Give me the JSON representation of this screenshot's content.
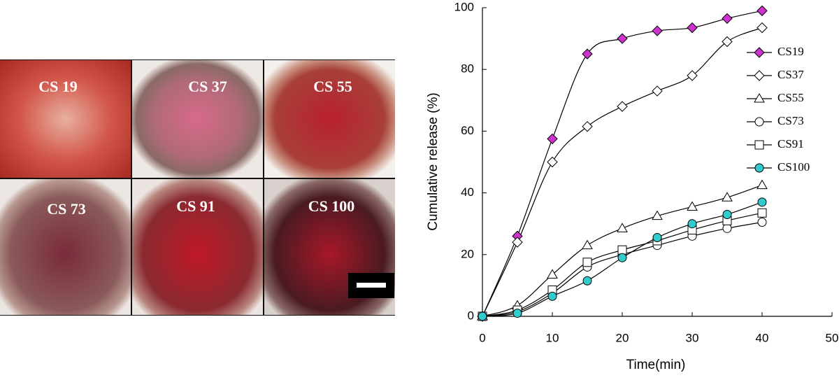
{
  "photo_labels": [
    "CS 19",
    "CS 37",
    "CS 55",
    "CS 73",
    "CS 91",
    "CS 100"
  ],
  "chart_data": {
    "type": "line",
    "x_label": "Time(min)",
    "y_label": "Cumulative release (%)",
    "x": [
      0,
      5,
      10,
      15,
      20,
      25,
      30,
      35,
      40
    ],
    "xlim": [
      0,
      50
    ],
    "xticks": [
      0,
      10,
      20,
      30,
      40,
      50
    ],
    "ylim": [
      0,
      100
    ],
    "yticks": [
      0,
      20,
      40,
      60,
      80,
      100
    ],
    "legend": "right",
    "series": [
      {
        "name": "CS19",
        "marker": "diamond",
        "color": "#cc33cc",
        "values": [
          0,
          26,
          57.5,
          85,
          90,
          92.5,
          93.5,
          96.5,
          99
        ]
      },
      {
        "name": "CS37",
        "marker": "diamond",
        "color": "#ffffff",
        "values": [
          0,
          24,
          50,
          61.5,
          68,
          73,
          78,
          89,
          93.5
        ]
      },
      {
        "name": "CS55",
        "marker": "triangle",
        "color": "#ffffff",
        "values": [
          0,
          3.5,
          13.5,
          23,
          28.5,
          32.5,
          35.5,
          38.5,
          42.5
        ]
      },
      {
        "name": "CS73",
        "marker": "circle",
        "color": "#ffffff",
        "values": [
          0,
          1.5,
          7.5,
          16,
          20,
          23,
          26,
          28.5,
          30.5
        ]
      },
      {
        "name": "CS91",
        "marker": "square",
        "color": "#ffffff",
        "values": [
          0,
          2,
          8.5,
          17.5,
          21.5,
          24.5,
          28,
          31,
          33.5
        ]
      },
      {
        "name": "CS100",
        "marker": "circle",
        "color": "#33cccc",
        "values": [
          0,
          1,
          6.5,
          11.5,
          19,
          25.5,
          30,
          33,
          37
        ]
      }
    ]
  }
}
